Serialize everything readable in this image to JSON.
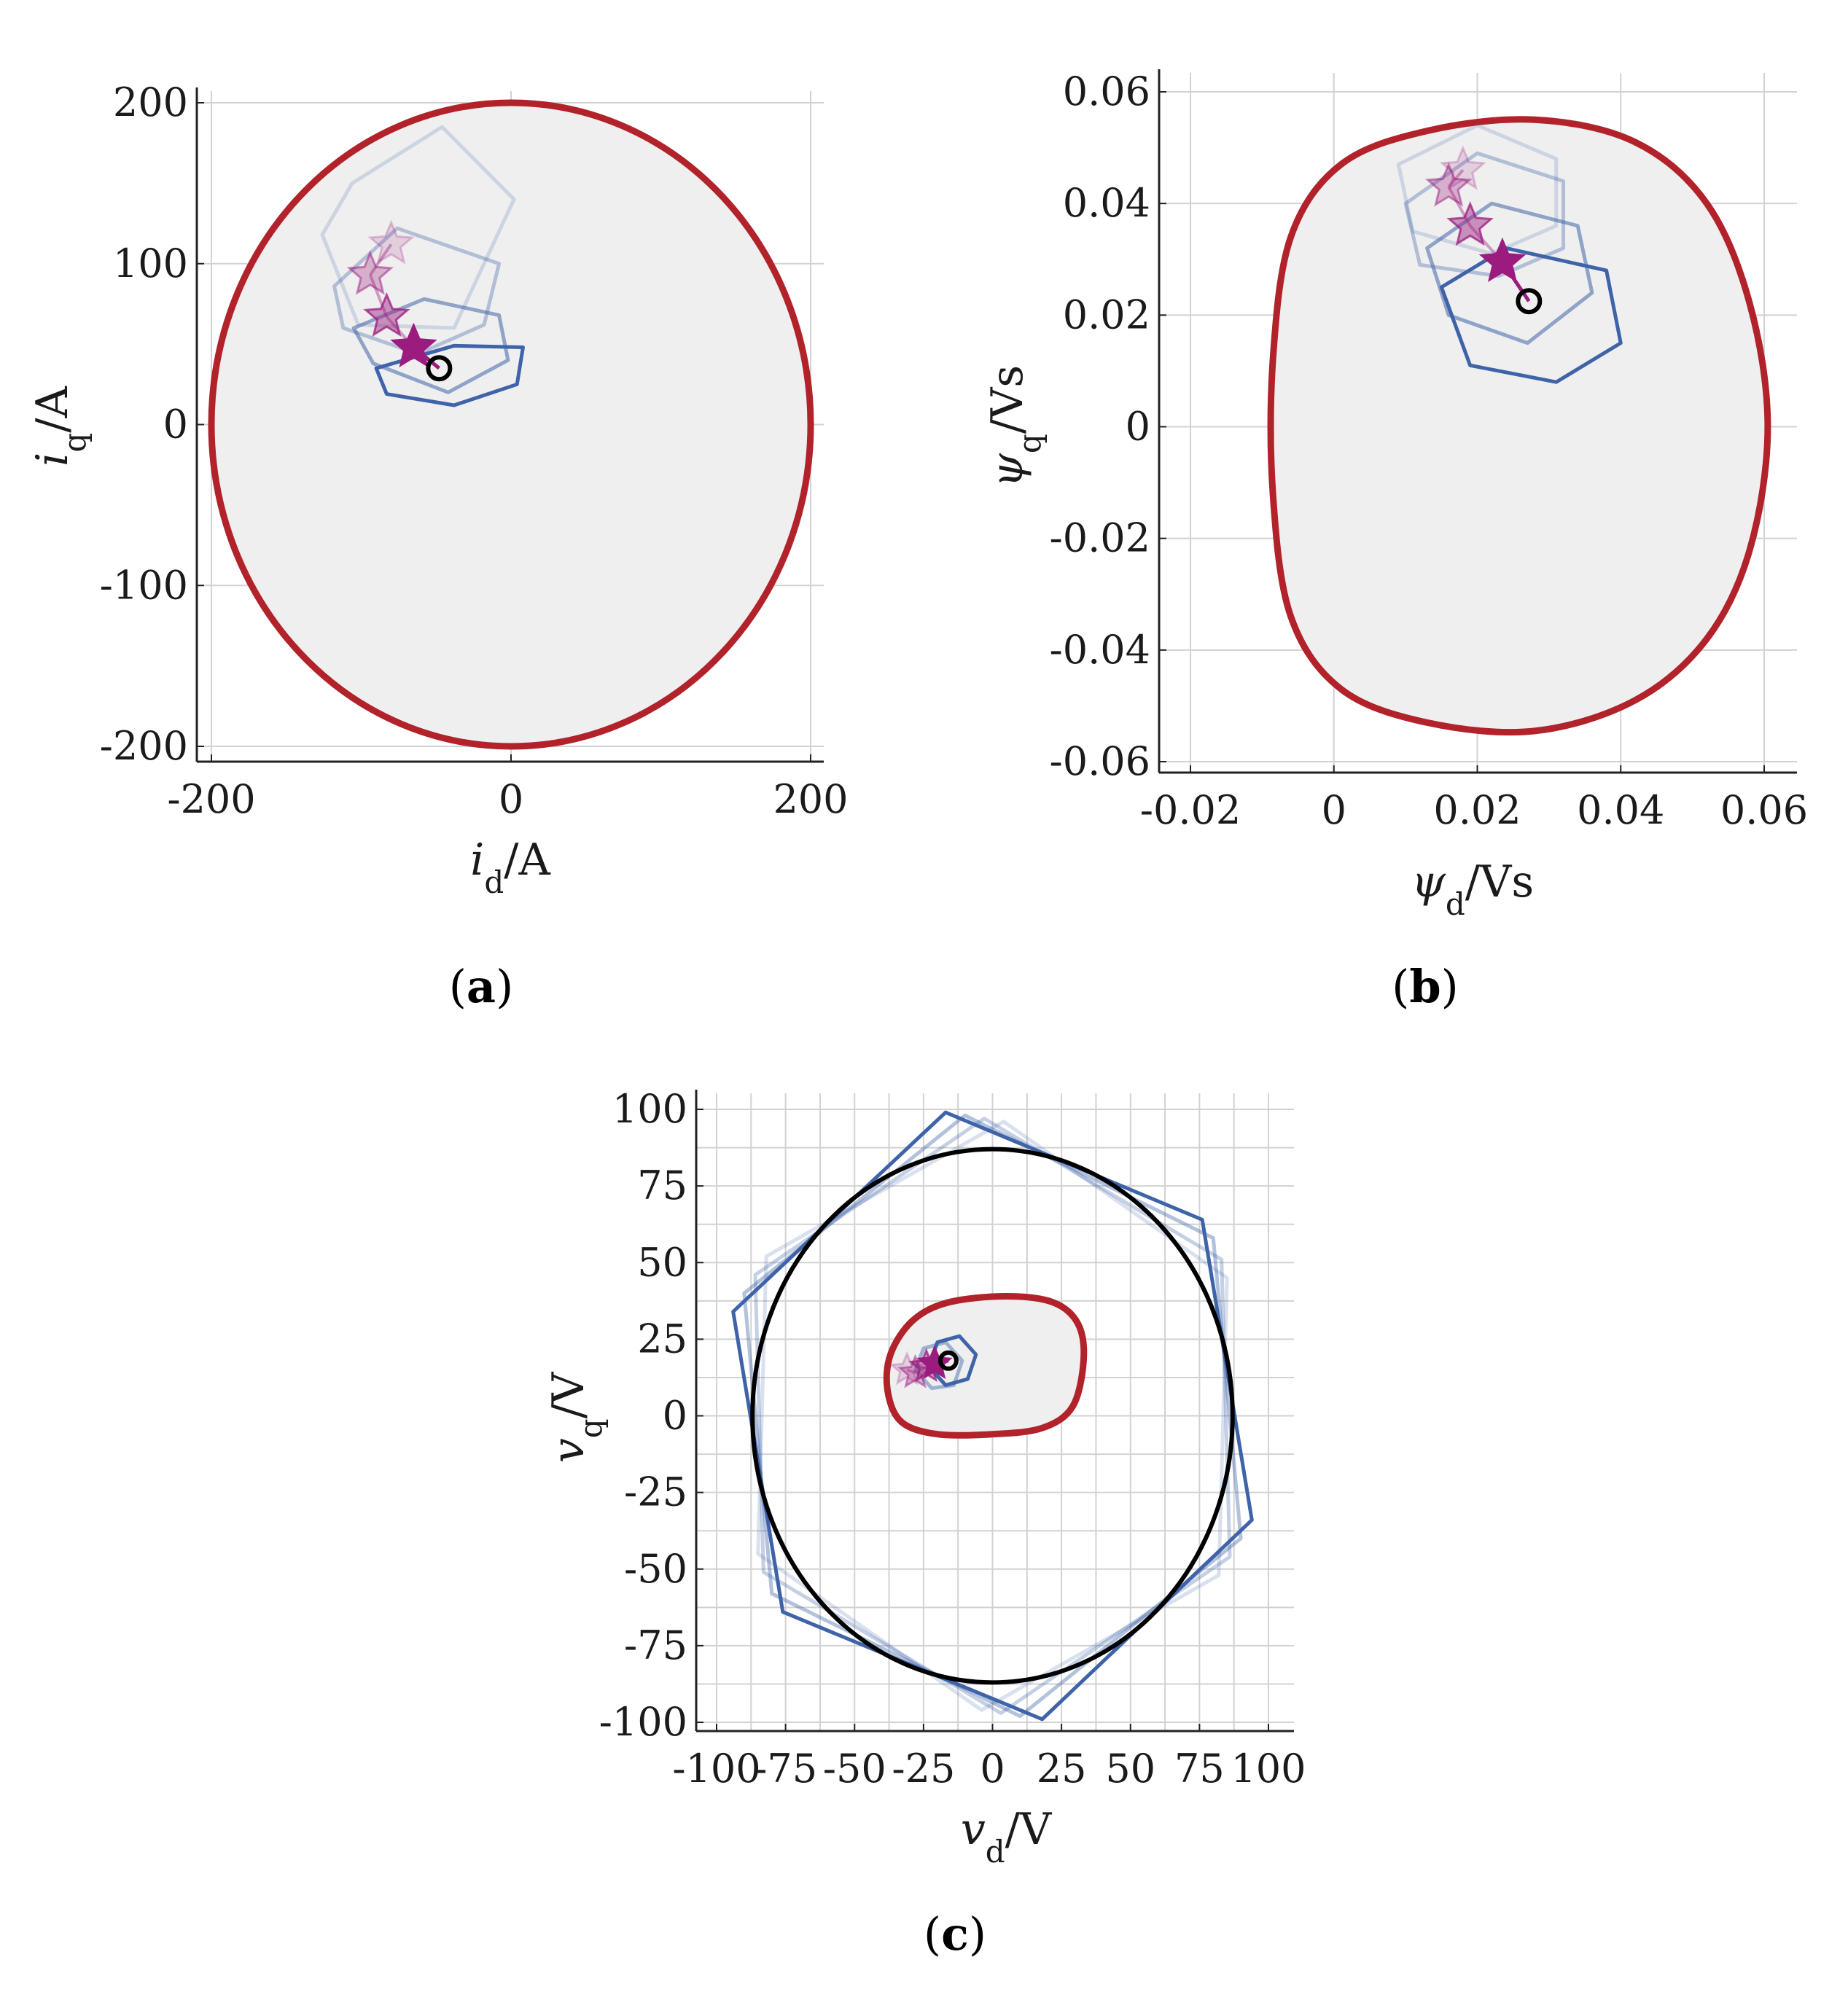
{
  "colors": {
    "boundary": "#b2222a",
    "polygon": "#3f63a8",
    "star": "#9b1b7e",
    "marker": "#000000",
    "fill": "#efefef",
    "grid": "#d2d2d2",
    "axis": "#222222"
  },
  "panels": [
    {
      "label_open": "(",
      "label_letter": "a",
      "label_close": ")"
    },
    {
      "label_open": "(",
      "label_letter": "b",
      "label_close": ")"
    },
    {
      "label_open": "(",
      "label_letter": "c",
      "label_close": ")"
    }
  ],
  "chart_data": [
    {
      "type": "scatter",
      "title": "",
      "xlabel": "i_d/A",
      "ylabel": "i_q/A",
      "xlabel_main": "i",
      "xlabel_sub": "d",
      "xlabel_unit": "/A",
      "ylabel_main": "i",
      "ylabel_sub": "q",
      "ylabel_unit": "/A",
      "xlim": [
        -200,
        200
      ],
      "ylim": [
        -200,
        200
      ],
      "xticks": [
        -200,
        0,
        200
      ],
      "xtick_labels": [
        "-200",
        "0",
        "200"
      ],
      "yticks": [
        -200,
        -100,
        0,
        100,
        200
      ],
      "ytick_labels": [
        "-200",
        "-100",
        "0",
        "100",
        "200"
      ],
      "grid": true,
      "feasible_region": {
        "shape": "circle",
        "center": [
          0,
          0
        ],
        "radius": 200
      },
      "trajectory": [
        [
          -80,
          112
        ],
        [
          -94,
          93
        ],
        [
          -83,
          67
        ],
        [
          -65,
          48
        ]
      ],
      "operating_point": [
        -48,
        35
      ],
      "polygons": [
        {
          "vertices": [
            [
              -38,
              49
            ],
            [
              8,
              48
            ],
            [
              4,
              25
            ],
            [
              -38,
              12
            ],
            [
              -83,
              19
            ],
            [
              -90,
              35
            ]
          ],
          "opacity": 1.0
        },
        {
          "vertices": [
            [
              -58,
              78
            ],
            [
              -8,
              68
            ],
            [
              -2,
              40
            ],
            [
              -42,
              20
            ],
            [
              -92,
              38
            ],
            [
              -105,
              60
            ]
          ],
          "opacity": 0.55
        },
        {
          "vertices": [
            [
              -76,
              122
            ],
            [
              -8,
              100
            ],
            [
              -18,
              62
            ],
            [
              -62,
              44
            ],
            [
              -112,
              60
            ],
            [
              -118,
              86
            ]
          ],
          "opacity": 0.35
        },
        {
          "vertices": [
            [
              -46,
              185
            ],
            [
              2,
              140
            ],
            [
              -38,
              60
            ],
            [
              -102,
              62
            ],
            [
              -126,
              118
            ],
            [
              -106,
              150
            ]
          ],
          "opacity": 0.2
        }
      ]
    },
    {
      "type": "scatter",
      "title": "",
      "xlabel": "ψ_d/Vs",
      "ylabel": "ψ_q/Vs",
      "xlabel_main": "ψ",
      "xlabel_sub": "d",
      "xlabel_unit": "/Vs",
      "ylabel_main": "ψ",
      "ylabel_sub": "q",
      "ylabel_unit": "/Vs",
      "xlim": [
        -0.025,
        0.065
      ],
      "ylim": [
        -0.062,
        0.063
      ],
      "xticks": [
        -0.02,
        0,
        0.02,
        0.04,
        0.06
      ],
      "xtick_labels": [
        "-0.02",
        "0",
        "0.02",
        "0.04",
        "0.06"
      ],
      "yticks": [
        -0.06,
        -0.04,
        -0.02,
        0,
        0.02,
        0.04,
        0.06
      ],
      "ytick_labels": [
        "-0.06",
        "-0.04",
        "-0.02",
        "0",
        "0.02",
        "0.04",
        "0.06"
      ],
      "grid": true,
      "feasible_region": {
        "shape": "closed-curve",
        "points": [
          [
            0.0605,
            0
          ],
          [
            0.058,
            0.022
          ],
          [
            0.052,
            0.04
          ],
          [
            0.042,
            0.051
          ],
          [
            0.028,
            0.055
          ],
          [
            0.013,
            0.053
          ],
          [
            0.001,
            0.047
          ],
          [
            -0.006,
            0.034
          ],
          [
            -0.0085,
            0.012
          ],
          [
            -0.0085,
            -0.012
          ],
          [
            -0.006,
            -0.034
          ],
          [
            0.001,
            -0.047
          ],
          [
            0.013,
            -0.053
          ],
          [
            0.028,
            -0.0545
          ],
          [
            0.042,
            -0.049
          ],
          [
            0.052,
            -0.038
          ],
          [
            0.058,
            -0.022
          ]
        ]
      },
      "trajectory": [
        [
          0.018,
          0.046
        ],
        [
          0.016,
          0.043
        ],
        [
          0.019,
          0.036
        ],
        [
          0.0235,
          0.0295
        ]
      ],
      "operating_point": [
        0.0272,
        0.0225
      ],
      "polygons": [
        {
          "vertices": [
            [
              0.024,
              0.032
            ],
            [
              0.038,
              0.028
            ],
            [
              0.04,
              0.015
            ],
            [
              0.031,
              0.008
            ],
            [
              0.019,
              0.011
            ],
            [
              0.015,
              0.025
            ]
          ],
          "opacity": 1.0
        },
        {
          "vertices": [
            [
              0.022,
              0.04
            ],
            [
              0.034,
              0.036
            ],
            [
              0.036,
              0.024
            ],
            [
              0.027,
              0.015
            ],
            [
              0.016,
              0.02
            ],
            [
              0.013,
              0.032
            ]
          ],
          "opacity": 0.55
        },
        {
          "vertices": [
            [
              0.02,
              0.049
            ],
            [
              0.032,
              0.044
            ],
            [
              0.032,
              0.032
            ],
            [
              0.023,
              0.027
            ],
            [
              0.012,
              0.029
            ],
            [
              0.01,
              0.04
            ]
          ],
          "opacity": 0.35
        },
        {
          "vertices": [
            [
              0.02,
              0.054
            ],
            [
              0.031,
              0.048
            ],
            [
              0.031,
              0.036
            ],
            [
              0.022,
              0.031
            ],
            [
              0.011,
              0.035
            ],
            [
              0.009,
              0.047
            ]
          ],
          "opacity": 0.2
        }
      ]
    },
    {
      "type": "scatter",
      "title": "",
      "xlabel": "v_d/V",
      "ylabel": "v_q/V",
      "xlabel_main": "v",
      "xlabel_sub": "d",
      "xlabel_unit": "/V",
      "ylabel_main": "v",
      "ylabel_sub": "q",
      "ylabel_unit": "/V",
      "xlim": [
        -103,
        103
      ],
      "ylim": [
        -103,
        103
      ],
      "xticks": [
        -100,
        -75,
        -50,
        -25,
        0,
        25,
        50,
        75,
        100
      ],
      "xtick_labels": [
        "-100",
        "-75",
        "-50",
        "-25",
        "0",
        "25",
        "50",
        "75",
        "100"
      ],
      "yticks": [
        -100,
        -75,
        -50,
        -25,
        0,
        25,
        50,
        75,
        100
      ],
      "ytick_labels": [
        "-100",
        "-75",
        "-50",
        "-25",
        "0",
        "25",
        "50",
        "75",
        "100"
      ],
      "grid": true,
      "voltage_circle": {
        "center": [
          0,
          0
        ],
        "radius": 87
      },
      "feasible_region": {
        "shape": "closed-curve",
        "points": [
          [
            33,
            18
          ],
          [
            31,
            30
          ],
          [
            22,
            37
          ],
          [
            5,
            39
          ],
          [
            -16,
            37
          ],
          [
            -29,
            31
          ],
          [
            -37,
            20
          ],
          [
            -38,
            8
          ],
          [
            -33,
            -2
          ],
          [
            -20,
            -6
          ],
          [
            0,
            -6
          ],
          [
            18,
            -4
          ],
          [
            29,
            3
          ]
        ]
      },
      "trajectory": [
        [
          -31,
          15
        ],
        [
          -28,
          14
        ],
        [
          -24,
          16
        ],
        [
          -21,
          17
        ]
      ],
      "operating_point": [
        -16,
        18
      ],
      "polygons": [
        {
          "vertices": [
            [
              -17,
              99
            ],
            [
              76,
              64
            ],
            [
              94,
              -34
            ],
            [
              18,
              -99
            ],
            [
              -76,
              -64
            ],
            [
              -94,
              34
            ]
          ],
          "opacity": 1.0
        },
        {
          "vertices": [
            [
              -10,
              98
            ],
            [
              80,
              58
            ],
            [
              90,
              -40
            ],
            [
              10,
              -98
            ],
            [
              -80,
              -58
            ],
            [
              -90,
              40
            ]
          ],
          "opacity": 0.4
        },
        {
          "vertices": [
            [
              -3,
              97
            ],
            [
              83,
              51
            ],
            [
              86,
              -46
            ],
            [
              3,
              -97
            ],
            [
              -83,
              -51
            ],
            [
              -86,
              46
            ]
          ],
          "opacity": 0.3
        },
        {
          "vertices": [
            [
              4,
              96
            ],
            [
              85,
              45
            ],
            [
              82,
              -52
            ],
            [
              -4,
              -96
            ],
            [
              -85,
              -45
            ],
            [
              -82,
              52
            ]
          ],
          "opacity": 0.2
        }
      ],
      "inner_polygons": [
        {
          "vertices": [
            [
              -12,
              26
            ],
            [
              -6,
              20
            ],
            [
              -9,
              12
            ],
            [
              -17,
              10
            ],
            [
              -23,
              16
            ],
            [
              -20,
              24
            ]
          ],
          "opacity": 1.0
        },
        {
          "vertices": [
            [
              -17,
              24
            ],
            [
              -11,
              18
            ],
            [
              -14,
              10
            ],
            [
              -22,
              9
            ],
            [
              -28,
              15
            ],
            [
              -25,
              22
            ]
          ],
          "opacity": 0.45
        }
      ]
    }
  ]
}
